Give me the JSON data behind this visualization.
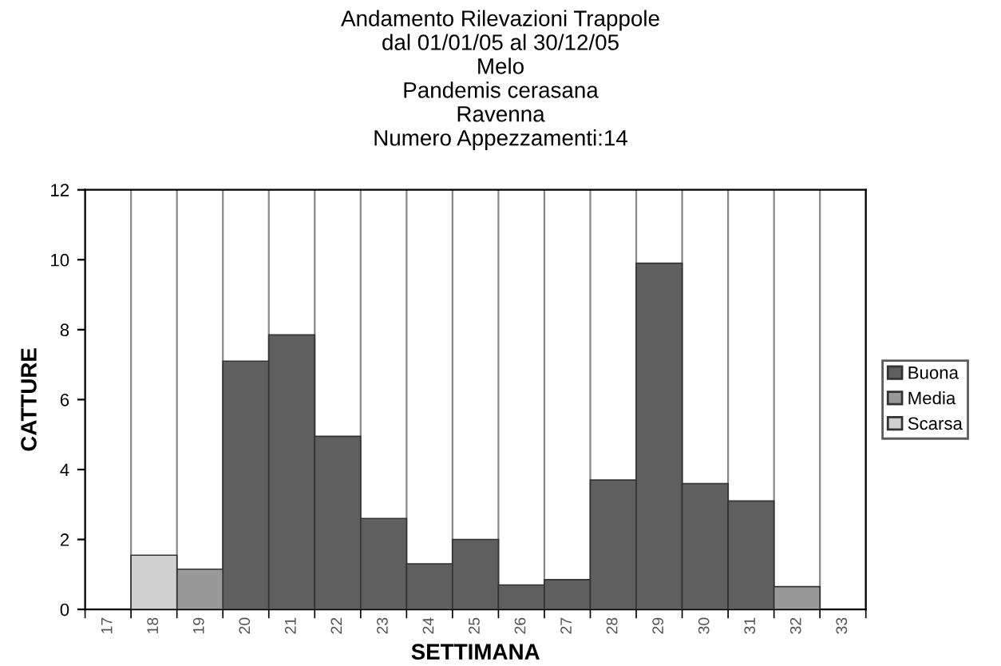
{
  "chart_data": {
    "type": "bar",
    "stacked": true,
    "title": "Andamento Rilevazioni Trappole\ndal 01/01/05 al 30/12/05\nMelo\nPandemis cerasana\nRavenna\nNumero Appezzamenti:14",
    "xlabel": "SETTIMANA",
    "ylabel": "CATTURE",
    "categories": [
      "17",
      "18",
      "19",
      "20",
      "21",
      "22",
      "23",
      "24",
      "25",
      "26",
      "27",
      "28",
      "29",
      "30",
      "31",
      "32",
      "33"
    ],
    "series": [
      {
        "name": "Buona",
        "color": "#5f5f5f",
        "values": [
          null,
          null,
          null,
          7.1,
          7.85,
          4.95,
          2.6,
          1.3,
          2.0,
          0.7,
          0.85,
          3.7,
          9.9,
          3.6,
          3.1,
          null,
          null
        ]
      },
      {
        "name": "Media",
        "color": "#999999",
        "values": [
          null,
          null,
          1.15,
          null,
          null,
          null,
          null,
          null,
          null,
          null,
          null,
          null,
          null,
          null,
          null,
          0.65,
          null
        ]
      },
      {
        "name": "Scarsa",
        "color": "#d0d0d0",
        "values": [
          null,
          1.55,
          null,
          null,
          null,
          null,
          null,
          null,
          null,
          null,
          null,
          null,
          null,
          null,
          null,
          null,
          null
        ]
      }
    ],
    "ylim": [
      0,
      12
    ],
    "yticks": [
      0,
      2,
      4,
      6,
      8,
      10,
      12
    ],
    "grid": "x",
    "legend": "right"
  }
}
